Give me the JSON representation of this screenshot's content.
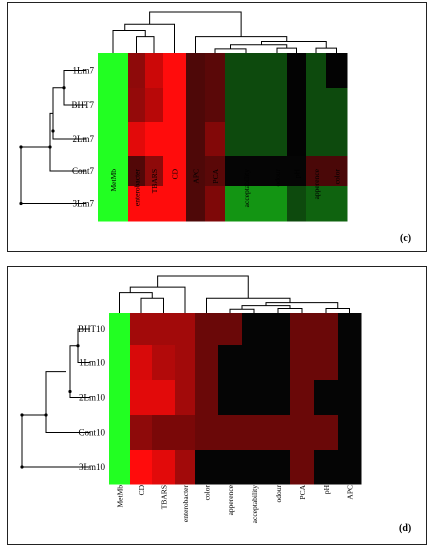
{
  "chart_data": [
    {
      "type": "heatmap",
      "panel_label": "(c)",
      "rows": [
        "1Lm7",
        "BHT7",
        "2Lm7",
        "Cont7",
        "3Lm7"
      ],
      "columns": [
        "MetMb",
        "enterobacter",
        "TBARS",
        "CD",
        "APC",
        "PCA",
        "acceptability",
        "odour",
        "pH",
        "apperence",
        "color"
      ],
      "cell_colors": [
        [
          "#22ff22",
          "#8e0a0a",
          "#cc0808",
          "#ff0c0c",
          "#4e0808",
          "#5a0808",
          "#0d4a0d",
          "#0d4a0d",
          "#030303",
          "#0d4a0d",
          "#030303"
        ],
        [
          "#22ff22",
          "#940a0a",
          "#b80808",
          "#ff0c0c",
          "#4e0808",
          "#5a0808",
          "#0d4a0d",
          "#0d4a0d",
          "#030303",
          "#0d4a0d",
          "#0d4a0d"
        ],
        [
          "#22ff22",
          "#e20a0a",
          "#ff0c0c",
          "#ff0c0c",
          "#4e0808",
          "#820808",
          "#0d4a0d",
          "#0d4a0d",
          "#030303",
          "#0d4a0d",
          "#0d4a0d"
        ],
        [
          "#22ff22",
          "#520808",
          "#8e0a0a",
          "#ff0c0c",
          "#4e0808",
          "#5a0808",
          "#050505",
          "#050505",
          "#050505",
          "#4a0808",
          "#4a0808"
        ],
        [
          "#22ff22",
          "#ff0c0c",
          "#ff0c0c",
          "#ff0c0c",
          "#4e0808",
          "#7e0808",
          "#139513",
          "#139513",
          "#0d4a0d",
          "#0f630f",
          "#0f630f"
        ]
      ]
    },
    {
      "type": "heatmap",
      "panel_label": "(d)",
      "rows": [
        "BHT10",
        "1Lm10",
        "2Lm10",
        "Cont10",
        "3Lm10"
      ],
      "columns": [
        "MetMb",
        "CD",
        "TBARS",
        "enterobacter",
        "color",
        "apperence",
        "acceptability",
        "odour",
        "PCA",
        "pH",
        "APC"
      ],
      "cell_colors": [
        [
          "#22ff22",
          "#a20a0a",
          "#a20a0a",
          "#a20a0a",
          "#6a0808",
          "#6a0808",
          "#050505",
          "#050505",
          "#6a0808",
          "#6a0808",
          "#050505"
        ],
        [
          "#22ff22",
          "#d80a0a",
          "#b20a0a",
          "#a20a0a",
          "#6a0808",
          "#050505",
          "#050505",
          "#050505",
          "#6a0808",
          "#6a0808",
          "#050505"
        ],
        [
          "#22ff22",
          "#e20a0a",
          "#e20a0a",
          "#a20a0a",
          "#6a0808",
          "#050505",
          "#050505",
          "#050505",
          "#6a0808",
          "#050505",
          "#050505"
        ],
        [
          "#22ff22",
          "#8e0a0a",
          "#7a0808",
          "#7a0808",
          "#6a0808",
          "#6a0808",
          "#6a0808",
          "#6a0808",
          "#6a0808",
          "#6a0808",
          "#050505"
        ],
        [
          "#22ff22",
          "#ff0c0c",
          "#e20a0a",
          "#a20a0a",
          "#050505",
          "#050505",
          "#050505",
          "#050505",
          "#6a0808",
          "#050505",
          "#050505"
        ]
      ]
    }
  ]
}
